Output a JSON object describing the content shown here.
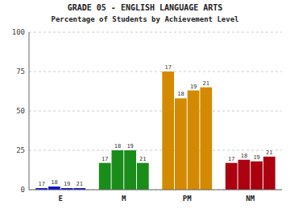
{
  "chart_data": {
    "type": "bar",
    "title": "GRADE 05 - ENGLISH LANGUAGE ARTS",
    "subtitle": "Percentage of Students by Achievement Level",
    "categories": [
      "E",
      "M",
      "PM",
      "NM"
    ],
    "colors": [
      "#1010cc",
      "#1a8c1a",
      "#d48a00",
      "#aa0010"
    ],
    "series": [
      {
        "name": "17",
        "values": [
          1,
          17,
          75,
          17
        ]
      },
      {
        "name": "18",
        "values": [
          2,
          25,
          58,
          19
        ]
      },
      {
        "name": "19",
        "values": [
          1,
          25,
          63,
          18
        ]
      },
      {
        "name": "21",
        "values": [
          1,
          17,
          65,
          21
        ]
      }
    ],
    "ylim": [
      0,
      100
    ],
    "yticks": [
      0,
      25,
      50,
      75,
      100
    ],
    "grid": true
  }
}
